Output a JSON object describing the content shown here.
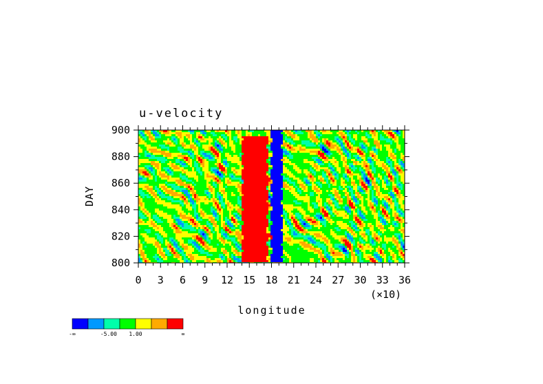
{
  "chart_data": {
    "type": "heatmap",
    "title": "u-velocity",
    "xlabel": "longitude",
    "ylabel": "DAY",
    "x_multiplier_label": "(×10)",
    "xlim": [
      0,
      36
    ],
    "ylim": [
      800,
      900
    ],
    "x_ticks": [
      "0",
      "3",
      "6",
      "9",
      "12",
      "15",
      "18",
      "21",
      "24",
      "27",
      "30",
      "33",
      "36"
    ],
    "y_ticks": [
      "800",
      "820",
      "840",
      "860",
      "880",
      "900"
    ],
    "colorbar": {
      "colors": [
        "#0000ff",
        "#0099ff",
        "#00ffaa",
        "#00ff00",
        "#ffff00",
        "#ffaa00",
        "#ff0000"
      ],
      "labels": [
        "-∞",
        "-5.00",
        "1.00",
        "∞"
      ]
    },
    "features": [
      {
        "description": "strong positive (red) band",
        "longitude_range": [
          14,
          17.5
        ],
        "day_range": [
          800,
          895
        ]
      },
      {
        "description": "negative (blue) band",
        "longitude_range": [
          18,
          19.5
        ],
        "day_range": [
          800,
          900
        ]
      }
    ]
  }
}
